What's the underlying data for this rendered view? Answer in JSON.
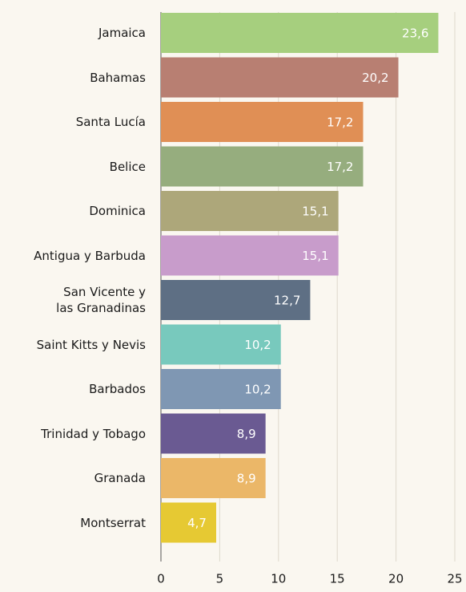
{
  "chart_data": {
    "type": "bar",
    "orientation": "horizontal",
    "categories": [
      "Jamaica",
      "Bahamas",
      "Santa Lucía",
      "Belice",
      "Dominica",
      "Antigua y Barbuda",
      "San Vicente y\nlas Granadinas",
      "Saint Kitts y Nevis",
      "Barbados",
      "Trinidad y Tobago",
      "Granada",
      "Montserrat"
    ],
    "values": [
      23.6,
      20.2,
      17.2,
      17.2,
      15.1,
      15.1,
      12.7,
      10.2,
      10.2,
      8.9,
      8.9,
      4.7
    ],
    "value_labels": [
      "23,6",
      "20,2",
      "17,2",
      "17,2",
      "15,1",
      "15,1",
      "12,7",
      "10,2",
      "10,2",
      "8,9",
      "8,9",
      "4,7"
    ],
    "colors": [
      "#a6cf7e",
      "#b87f72",
      "#e08f55",
      "#96ad7e",
      "#ada77a",
      "#c89ccb",
      "#5e6f84",
      "#78c9bd",
      "#7f97b3",
      "#6a5a92",
      "#ebb768",
      "#e6c933"
    ],
    "xlim": [
      0,
      25
    ],
    "xticks": [
      0,
      5,
      10,
      15,
      20,
      25
    ],
    "grid": true
  }
}
